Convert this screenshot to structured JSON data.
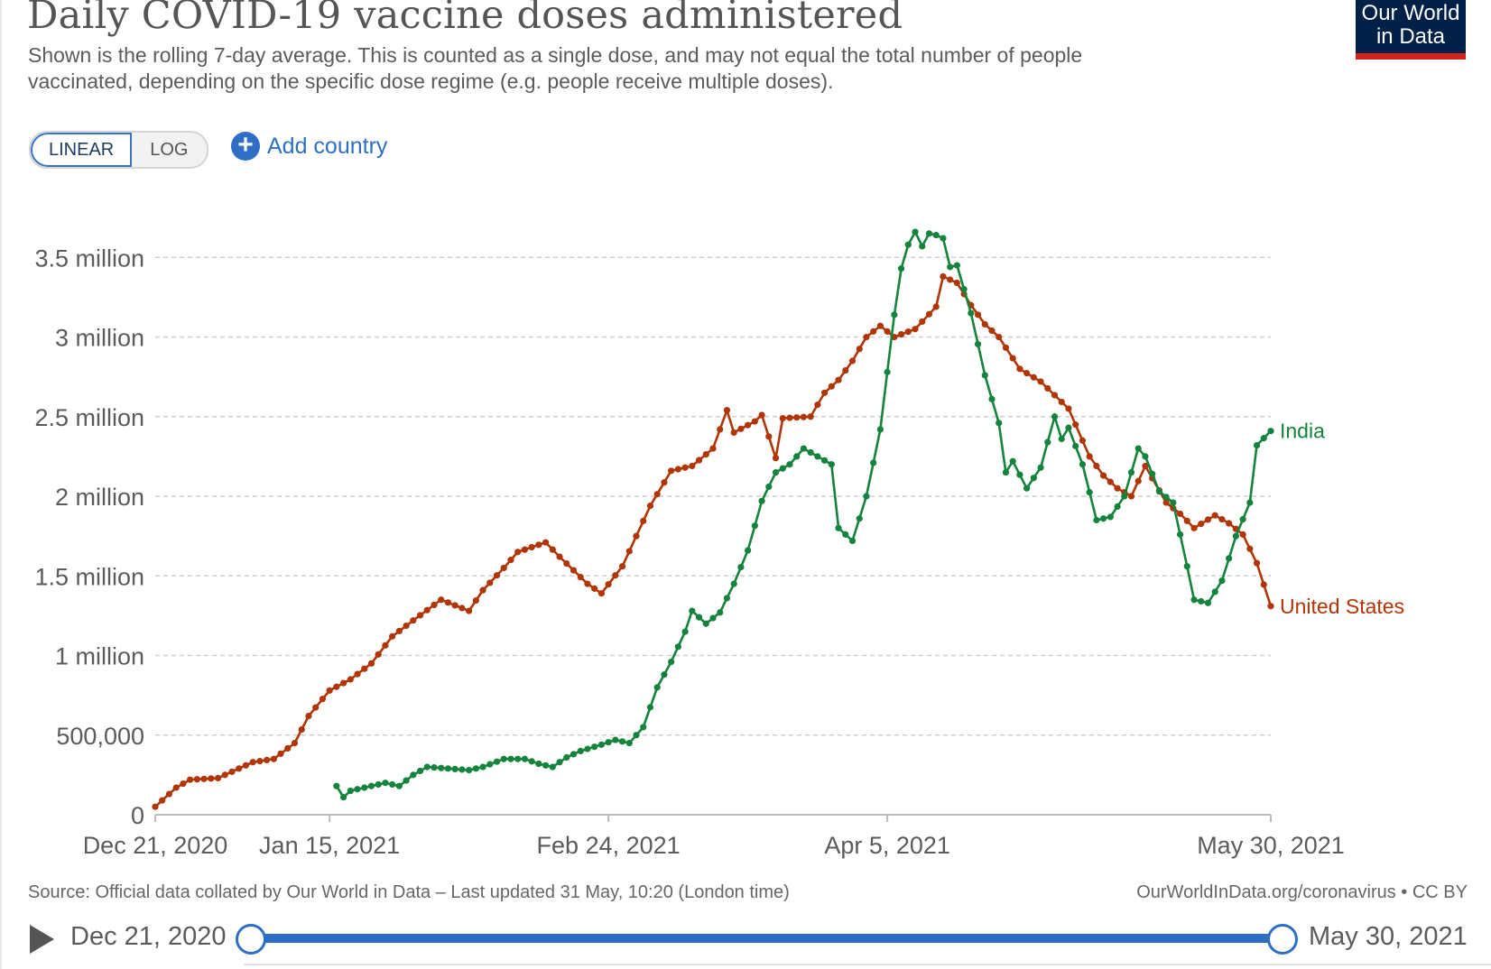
{
  "header": {
    "title": "Daily COVID-19 vaccine doses administered",
    "subtitle": "Shown is the rolling 7-day average. This is counted as a single dose, and may not equal the total number of people vaccinated, depending on the specific dose regime (e.g. people receive multiple doses).",
    "logo_line1": "Our World",
    "logo_line2": "in Data"
  },
  "controls": {
    "linear_label": "LINEAR",
    "log_label": "LOG",
    "add_country_label": "Add country",
    "active_scale": "linear"
  },
  "footer": {
    "source": "Source: Official data collated by Our World in Data – Last updated 31 May, 10:20 (London time)",
    "url": "OurWorldInData.org/coronavirus • CC BY"
  },
  "timeline": {
    "start_label": "Dec 21, 2020",
    "end_label": "May 30, 2021"
  },
  "colors": {
    "india": "#14833b",
    "united_states": "#b13507",
    "grid": "#cfcfcf",
    "accent": "#2d6fc4"
  },
  "chart_data": {
    "type": "line",
    "title": "Daily COVID-19 vaccine doses administered",
    "x_start_date": "2020-12-21",
    "x_end_date": "2021-05-30",
    "xticks": [
      {
        "label": "Dec 21, 2020",
        "day": 0
      },
      {
        "label": "Jan 15, 2021",
        "day": 25
      },
      {
        "label": "Feb 24, 2021",
        "day": 65
      },
      {
        "label": "Apr 5, 2021",
        "day": 105
      },
      {
        "label": "May 30, 2021",
        "day": 160
      }
    ],
    "ylim": [
      0,
      3700000
    ],
    "yticks": [
      {
        "label": "0",
        "value": 0
      },
      {
        "label": "500,000",
        "value": 500000
      },
      {
        "label": "1 million",
        "value": 1000000
      },
      {
        "label": "1.5 million",
        "value": 1500000
      },
      {
        "label": "2 million",
        "value": 2000000
      },
      {
        "label": "2.5 million",
        "value": 2500000
      },
      {
        "label": "3 million",
        "value": 3000000
      },
      {
        "label": "3.5 million",
        "value": 3500000
      }
    ],
    "series": [
      {
        "name": "United States",
        "color": "#b13507",
        "anchors": [
          [
            0,
            50000
          ],
          [
            3,
            170000
          ],
          [
            5,
            220000
          ],
          [
            9,
            230000
          ],
          [
            12,
            290000
          ],
          [
            14,
            330000
          ],
          [
            17,
            350000
          ],
          [
            20,
            450000
          ],
          [
            22,
            620000
          ],
          [
            25,
            780000
          ],
          [
            28,
            850000
          ],
          [
            31,
            950000
          ],
          [
            34,
            1120000
          ],
          [
            37,
            1220000
          ],
          [
            41,
            1350000
          ],
          [
            45,
            1280000
          ],
          [
            47,
            1410000
          ],
          [
            50,
            1550000
          ],
          [
            52,
            1650000
          ],
          [
            56,
            1710000
          ],
          [
            58,
            1620000
          ],
          [
            62,
            1450000
          ],
          [
            64,
            1390000
          ],
          [
            67,
            1560000
          ],
          [
            71,
            1940000
          ],
          [
            74,
            2160000
          ],
          [
            77,
            2190000
          ],
          [
            80,
            2300000
          ],
          [
            82,
            2540000
          ],
          [
            83,
            2400000
          ],
          [
            86,
            2470000
          ],
          [
            87,
            2510000
          ],
          [
            89,
            2240000
          ],
          [
            90,
            2490000
          ],
          [
            94,
            2500000
          ],
          [
            96,
            2650000
          ],
          [
            98,
            2730000
          ],
          [
            100,
            2850000
          ],
          [
            102,
            3000000
          ],
          [
            104,
            3070000
          ],
          [
            106,
            3000000
          ],
          [
            109,
            3050000
          ],
          [
            112,
            3190000
          ],
          [
            113,
            3380000
          ],
          [
            115,
            3340000
          ],
          [
            117,
            3200000
          ],
          [
            119,
            3080000
          ],
          [
            121,
            3000000
          ],
          [
            124,
            2800000
          ],
          [
            127,
            2720000
          ],
          [
            131,
            2550000
          ],
          [
            134,
            2250000
          ],
          [
            136,
            2130000
          ],
          [
            138,
            2050000
          ],
          [
            140,
            2000000
          ],
          [
            142,
            2190000
          ],
          [
            145,
            1960000
          ],
          [
            147,
            1890000
          ],
          [
            149,
            1800000
          ],
          [
            152,
            1880000
          ],
          [
            154,
            1830000
          ],
          [
            156,
            1760000
          ],
          [
            158,
            1580000
          ],
          [
            160,
            1310000
          ]
        ]
      },
      {
        "name": "India",
        "color": "#14833b",
        "anchors": [
          [
            26,
            180000
          ],
          [
            27,
            110000
          ],
          [
            28,
            150000
          ],
          [
            31,
            180000
          ],
          [
            33,
            200000
          ],
          [
            35,
            180000
          ],
          [
            37,
            250000
          ],
          [
            39,
            300000
          ],
          [
            42,
            290000
          ],
          [
            45,
            280000
          ],
          [
            47,
            300000
          ],
          [
            50,
            350000
          ],
          [
            53,
            350000
          ],
          [
            55,
            320000
          ],
          [
            57,
            300000
          ],
          [
            59,
            360000
          ],
          [
            61,
            400000
          ],
          [
            64,
            440000
          ],
          [
            66,
            470000
          ],
          [
            68,
            450000
          ],
          [
            70,
            550000
          ],
          [
            72,
            800000
          ],
          [
            74,
            960000
          ],
          [
            76,
            1150000
          ],
          [
            77,
            1280000
          ],
          [
            79,
            1200000
          ],
          [
            81,
            1270000
          ],
          [
            83,
            1450000
          ],
          [
            85,
            1660000
          ],
          [
            87,
            1970000
          ],
          [
            89,
            2150000
          ],
          [
            91,
            2200000
          ],
          [
            93,
            2300000
          ],
          [
            95,
            2250000
          ],
          [
            97,
            2200000
          ],
          [
            98,
            1800000
          ],
          [
            100,
            1720000
          ],
          [
            102,
            2000000
          ],
          [
            104,
            2420000
          ],
          [
            106,
            3140000
          ],
          [
            107,
            3430000
          ],
          [
            108,
            3580000
          ],
          [
            109,
            3660000
          ],
          [
            110,
            3570000
          ],
          [
            111,
            3650000
          ],
          [
            112,
            3640000
          ],
          [
            113,
            3620000
          ],
          [
            114,
            3440000
          ],
          [
            115,
            3450000
          ],
          [
            117,
            3150000
          ],
          [
            119,
            2760000
          ],
          [
            121,
            2460000
          ],
          [
            122,
            2150000
          ],
          [
            123,
            2220000
          ],
          [
            125,
            2050000
          ],
          [
            127,
            2180000
          ],
          [
            129,
            2500000
          ],
          [
            130,
            2360000
          ],
          [
            131,
            2430000
          ],
          [
            133,
            2200000
          ],
          [
            135,
            1850000
          ],
          [
            137,
            1870000
          ],
          [
            139,
            2000000
          ],
          [
            141,
            2300000
          ],
          [
            142,
            2250000
          ],
          [
            144,
            2030000
          ],
          [
            146,
            1960000
          ],
          [
            148,
            1560000
          ],
          [
            149,
            1350000
          ],
          [
            151,
            1330000
          ],
          [
            153,
            1470000
          ],
          [
            155,
            1750000
          ],
          [
            157,
            1960000
          ],
          [
            158,
            2320000
          ],
          [
            160,
            2410000
          ]
        ]
      }
    ]
  }
}
